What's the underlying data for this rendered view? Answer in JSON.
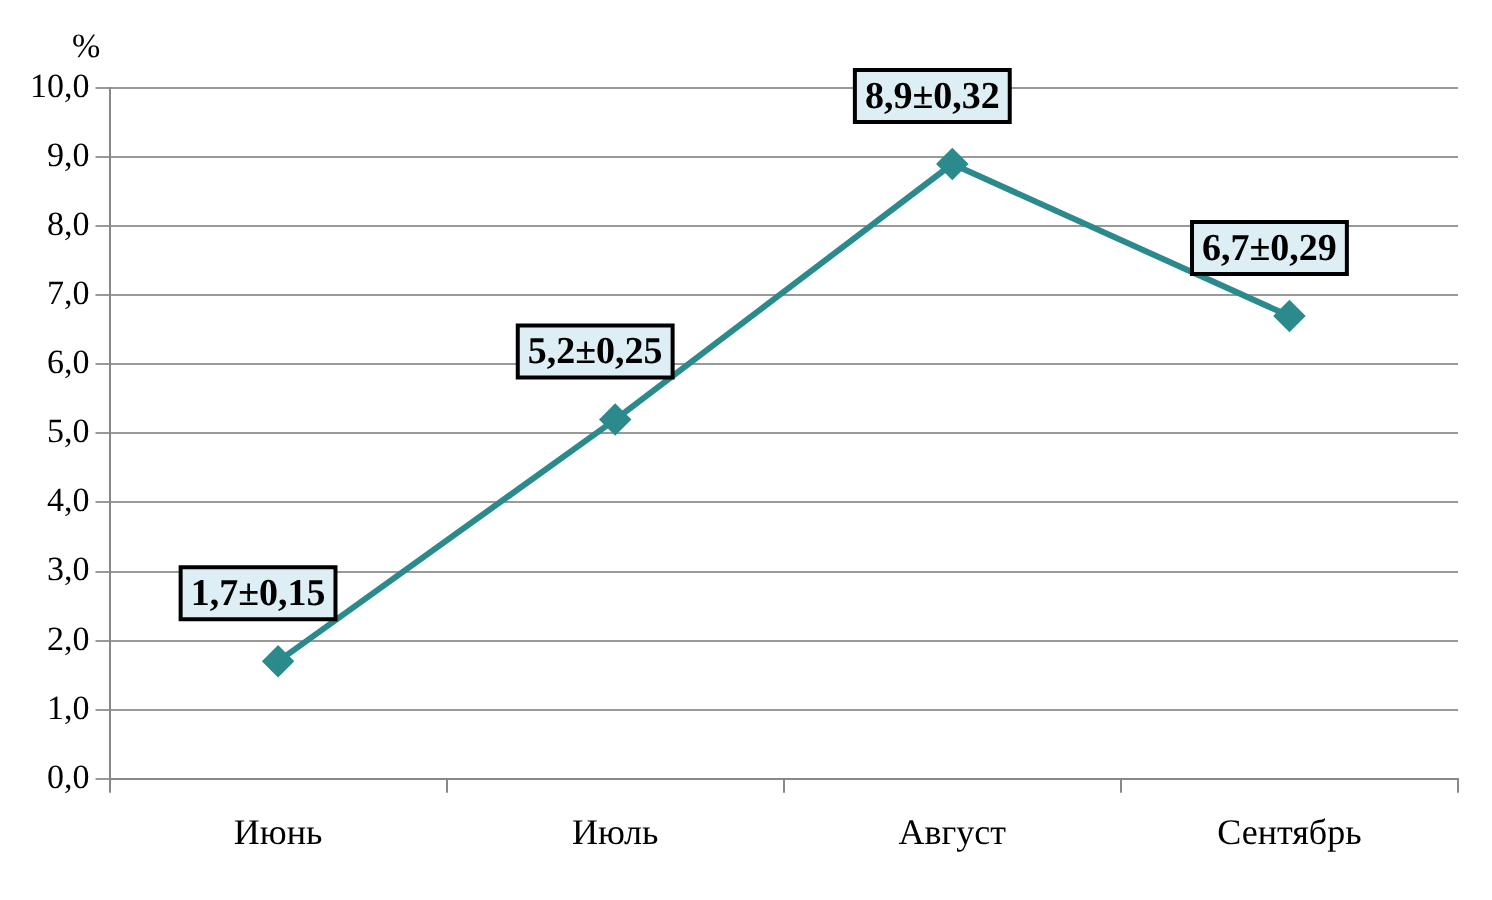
{
  "chart_data": {
    "type": "line",
    "ylabel": "%",
    "categories": [
      "Июнь",
      "Июль",
      "Август",
      "Сентябрь"
    ],
    "series": [
      {
        "color": "#2b8a8c",
        "values": [
          1.7,
          5.2,
          8.9,
          6.7
        ],
        "value_labels": [
          "1,7±0,15",
          "5,2±0,25",
          "8,9±0,32",
          "6,7±0,29"
        ]
      }
    ],
    "ylim": [
      0,
      10
    ],
    "yticks": [
      {
        "value": 0,
        "label": "0,0"
      },
      {
        "value": 1,
        "label": "1,0"
      },
      {
        "value": 2,
        "label": "2,0"
      },
      {
        "value": 3,
        "label": "3,0"
      },
      {
        "value": 4,
        "label": "4,0"
      },
      {
        "value": 5,
        "label": "5,0"
      },
      {
        "value": 6,
        "label": "6,0"
      },
      {
        "value": 7,
        "label": "7,0"
      },
      {
        "value": 8,
        "label": "8,0"
      },
      {
        "value": 9,
        "label": "9,0"
      },
      {
        "value": 10,
        "label": "10,0"
      }
    ],
    "grid": "y",
    "marker": "diamond",
    "line_style": "solid",
    "legend": false
  }
}
